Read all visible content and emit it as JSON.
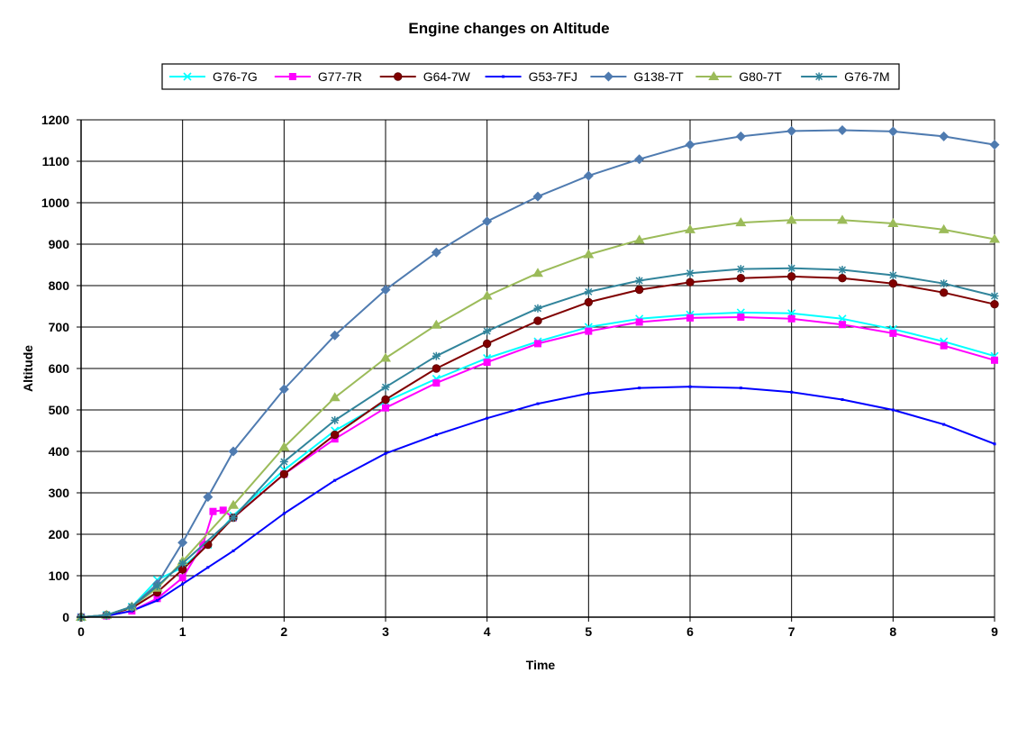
{
  "chart_data": {
    "type": "line",
    "title": "Engine changes on Altitude",
    "xlabel": "Time",
    "ylabel": "Altitude",
    "xlim": [
      0,
      9
    ],
    "ylim": [
      0,
      1200
    ],
    "x_ticks": [
      "0",
      "1",
      "2",
      "3",
      "4",
      "5",
      "6",
      "7",
      "8",
      "9"
    ],
    "y_ticks": [
      "0",
      "100",
      "200",
      "300",
      "400",
      "500",
      "600",
      "700",
      "800",
      "900",
      "1000",
      "1100",
      "1200"
    ],
    "grid": true,
    "legend_position": "top",
    "series": [
      {
        "name": "G76-7G",
        "color": "#00ffff",
        "marker": "x",
        "points": [
          [
            0,
            0
          ],
          [
            0.25,
            5
          ],
          [
            0.5,
            25
          ],
          [
            0.75,
            90
          ],
          [
            1,
            120
          ],
          [
            1.25,
            175
          ],
          [
            1.5,
            245
          ],
          [
            2,
            355
          ],
          [
            2.5,
            450
          ],
          [
            3,
            520
          ],
          [
            3.5,
            575
          ],
          [
            4,
            625
          ],
          [
            4.5,
            665
          ],
          [
            5,
            700
          ],
          [
            5.5,
            720
          ],
          [
            6,
            730
          ],
          [
            6.5,
            735
          ],
          [
            7,
            733
          ],
          [
            7.5,
            720
          ],
          [
            8,
            695
          ],
          [
            8.5,
            665
          ],
          [
            9,
            630
          ]
        ]
      },
      {
        "name": "G77-7R",
        "color": "#ff00ff",
        "marker": "square",
        "points": [
          [
            0,
            0
          ],
          [
            0.25,
            3
          ],
          [
            0.5,
            15
          ],
          [
            0.75,
            45
          ],
          [
            1,
            95
          ],
          [
            1.2,
            175
          ],
          [
            1.3,
            255
          ],
          [
            1.4,
            258
          ],
          [
            1.5,
            240
          ],
          [
            2,
            345
          ],
          [
            2.5,
            430
          ],
          [
            3,
            505
          ],
          [
            3.5,
            565
          ],
          [
            4,
            615
          ],
          [
            4.5,
            660
          ],
          [
            5,
            690
          ],
          [
            5.5,
            712
          ],
          [
            6,
            722
          ],
          [
            6.5,
            724
          ],
          [
            7,
            720
          ],
          [
            7.5,
            706
          ],
          [
            8,
            685
          ],
          [
            8.5,
            655
          ],
          [
            9,
            620
          ]
        ]
      },
      {
        "name": "G64-7W",
        "color": "#800000",
        "marker": "circle",
        "points": [
          [
            0,
            0
          ],
          [
            0.25,
            5
          ],
          [
            0.5,
            22
          ],
          [
            0.75,
            60
          ],
          [
            1,
            115
          ],
          [
            1.25,
            175
          ],
          [
            1.5,
            240
          ],
          [
            2,
            345
          ],
          [
            2.5,
            440
          ],
          [
            3,
            525
          ],
          [
            3.5,
            600
          ],
          [
            4,
            660
          ],
          [
            4.5,
            715
          ],
          [
            5,
            760
          ],
          [
            5.5,
            790
          ],
          [
            6,
            808
          ],
          [
            6.5,
            818
          ],
          [
            7,
            822
          ],
          [
            7.5,
            818
          ],
          [
            8,
            805
          ],
          [
            8.5,
            783
          ],
          [
            9,
            755
          ]
        ]
      },
      {
        "name": "G53-7FJ",
        "color": "#0000ff",
        "marker": "dot",
        "points": [
          [
            0,
            0
          ],
          [
            0.25,
            3
          ],
          [
            0.5,
            15
          ],
          [
            0.75,
            40
          ],
          [
            1,
            80
          ],
          [
            1.25,
            120
          ],
          [
            1.5,
            160
          ],
          [
            2,
            250
          ],
          [
            2.5,
            330
          ],
          [
            3,
            395
          ],
          [
            3.5,
            440
          ],
          [
            4,
            480
          ],
          [
            4.5,
            515
          ],
          [
            5,
            540
          ],
          [
            5.5,
            553
          ],
          [
            6,
            556
          ],
          [
            6.5,
            553
          ],
          [
            7,
            543
          ],
          [
            7.5,
            525
          ],
          [
            8,
            500
          ],
          [
            8.5,
            465
          ],
          [
            9,
            418
          ]
        ]
      },
      {
        "name": "G138-7T",
        "color": "#4f7bb0",
        "marker": "diamond",
        "points": [
          [
            0,
            0
          ],
          [
            0.25,
            5
          ],
          [
            0.5,
            25
          ],
          [
            0.75,
            80
          ],
          [
            1,
            180
          ],
          [
            1.25,
            290
          ],
          [
            1.5,
            400
          ],
          [
            2,
            550
          ],
          [
            2.5,
            680
          ],
          [
            3,
            790
          ],
          [
            3.5,
            880
          ],
          [
            4,
            955
          ],
          [
            4.5,
            1015
          ],
          [
            5,
            1065
          ],
          [
            5.5,
            1105
          ],
          [
            6,
            1140
          ],
          [
            6.5,
            1160
          ],
          [
            7,
            1173
          ],
          [
            7.5,
            1175
          ],
          [
            8,
            1172
          ],
          [
            8.5,
            1160
          ],
          [
            9,
            1140
          ]
        ]
      },
      {
        "name": "G80-7T",
        "color": "#9bbb59",
        "marker": "triangle",
        "points": [
          [
            0,
            0
          ],
          [
            0.25,
            5
          ],
          [
            0.5,
            25
          ],
          [
            0.75,
            70
          ],
          [
            1,
            135
          ],
          [
            1.5,
            270
          ],
          [
            2,
            410
          ],
          [
            2.5,
            530
          ],
          [
            3,
            625
          ],
          [
            3.5,
            705
          ],
          [
            4,
            775
          ],
          [
            4.5,
            830
          ],
          [
            5,
            875
          ],
          [
            5.5,
            910
          ],
          [
            6,
            935
          ],
          [
            6.5,
            952
          ],
          [
            7,
            958
          ],
          [
            7.5,
            958
          ],
          [
            8,
            950
          ],
          [
            8.5,
            935
          ],
          [
            9,
            912
          ]
        ]
      },
      {
        "name": "G76-7M",
        "color": "#31849b",
        "marker": "star",
        "points": [
          [
            0,
            0
          ],
          [
            0.25,
            5
          ],
          [
            0.5,
            25
          ],
          [
            0.75,
            75
          ],
          [
            1,
            130
          ],
          [
            1.5,
            240
          ],
          [
            2,
            375
          ],
          [
            2.5,
            475
          ],
          [
            3,
            555
          ],
          [
            3.5,
            630
          ],
          [
            4,
            690
          ],
          [
            4.5,
            745
          ],
          [
            5,
            785
          ],
          [
            5.5,
            812
          ],
          [
            6,
            830
          ],
          [
            6.5,
            840
          ],
          [
            7,
            842
          ],
          [
            7.5,
            838
          ],
          [
            8,
            825
          ],
          [
            8.5,
            805
          ],
          [
            9,
            775
          ]
        ]
      }
    ]
  }
}
